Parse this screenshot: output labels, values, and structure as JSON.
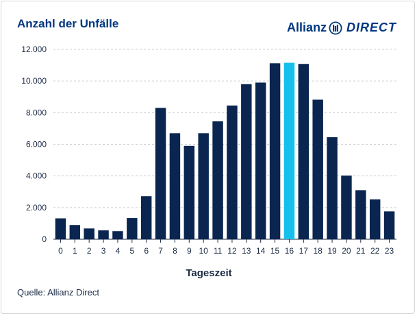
{
  "chart_data": {
    "type": "bar",
    "title": "Anzahl der Unfälle",
    "xlabel": "Tageszeit",
    "ylabel": "",
    "ylim": [
      0,
      12000
    ],
    "yticks": [
      0,
      2000,
      4000,
      6000,
      8000,
      10000,
      12000
    ],
    "ytick_labels": [
      "0",
      "2.000",
      "4.000",
      "6.000",
      "8.000",
      "10.000",
      "12.000"
    ],
    "categories": [
      "0",
      "1",
      "2",
      "3",
      "4",
      "5",
      "6",
      "7",
      "8",
      "9",
      "10",
      "11",
      "12",
      "13",
      "14",
      "15",
      "16",
      "17",
      "18",
      "19",
      "20",
      "21",
      "22",
      "23"
    ],
    "values": [
      1320,
      900,
      680,
      560,
      510,
      1340,
      2720,
      8300,
      6700,
      5900,
      6700,
      7450,
      8450,
      9800,
      9900,
      11120,
      11150,
      11080,
      8820,
      6450,
      4020,
      3100,
      2520,
      1760
    ],
    "highlight_index": 16,
    "bar_color": "#0a2550",
    "highlight_color": "#16c0ec",
    "grid": true
  },
  "brand": {
    "name": "Allianz",
    "suffix": "DIRECT"
  },
  "source": "Quelle: Allianz Direct",
  "colors": {
    "brand": "#003781",
    "grid": "#c8cdd6",
    "text": "#1a2a44"
  }
}
